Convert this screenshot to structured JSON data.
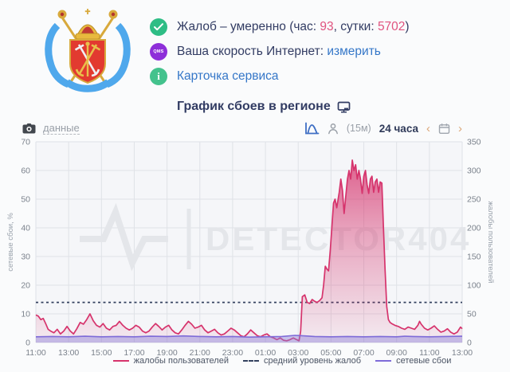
{
  "status": {
    "complaints_prefix": "Жалоб – умеренно (час: ",
    "complaints_hour": "93",
    "complaints_mid": ", сутки: ",
    "complaints_day": "5702",
    "complaints_suffix": ")",
    "qms_badge": "QMS",
    "speed_label": "Ваша скорость Интернет:",
    "speed_link": "измерить",
    "service_card_link": "Карточка сервиса"
  },
  "chart_section": {
    "title": "График сбоев в регионе",
    "data_toggle": "данные",
    "interval": "(15м)",
    "range": "24 часа",
    "chevron_left": "‹",
    "chevron_right": "›"
  },
  "colors": {
    "complaints_line": "#d6336c",
    "outages_line": "#7e6bd8",
    "average_line": "#33415e",
    "link_blue": "#3577c8",
    "value_pink": "#e0537f",
    "badge_green": "#2ebd85",
    "badge_purple": "#8e2fd9"
  },
  "chart_data": {
    "type": "area",
    "title": "График сбоев в регионе",
    "watermark": "DETECTOR404",
    "x_range": [
      0,
      26
    ],
    "x_tick_step": 2,
    "x_ticks": [
      "11:00",
      "13:00",
      "15:00",
      "17:00",
      "19:00",
      "21:00",
      "23:00",
      "01:00",
      "03:00",
      "05:00",
      "07:00",
      "09:00",
      "11:00",
      "13:00"
    ],
    "y_left": {
      "label": "сетевые сбои, %",
      "max": 70,
      "ticks": [
        0,
        10,
        20,
        30,
        40,
        50,
        60,
        70
      ]
    },
    "y_right": {
      "label": "жалобы пользователей",
      "max": 350,
      "ticks": [
        0,
        50,
        100,
        150,
        200,
        250,
        300,
        350
      ]
    },
    "average_line": {
      "name": "средний уровень жалоб",
      "axis": "right",
      "value": 70,
      "color": "#33415e"
    },
    "series": [
      {
        "name": "жалобы пользователей",
        "axis": "right",
        "color": "#d6336c",
        "points": [
          [
            0,
            48
          ],
          [
            0.15,
            46
          ],
          [
            0.3,
            40
          ],
          [
            0.45,
            42
          ],
          [
            0.6,
            33
          ],
          [
            0.75,
            23
          ],
          [
            0.9,
            20
          ],
          [
            1.1,
            17
          ],
          [
            1.3,
            23
          ],
          [
            1.5,
            15
          ],
          [
            1.7,
            20
          ],
          [
            1.9,
            28
          ],
          [
            2.1,
            20
          ],
          [
            2.3,
            15
          ],
          [
            2.5,
            24
          ],
          [
            2.7,
            35
          ],
          [
            2.9,
            32
          ],
          [
            3.1,
            40
          ],
          [
            3.3,
            50
          ],
          [
            3.5,
            38
          ],
          [
            3.7,
            30
          ],
          [
            3.9,
            27
          ],
          [
            4.1,
            33
          ],
          [
            4.3,
            25
          ],
          [
            4.5,
            22
          ],
          [
            4.7,
            28
          ],
          [
            4.9,
            30
          ],
          [
            5.1,
            37
          ],
          [
            5.3,
            30
          ],
          [
            5.5,
            25
          ],
          [
            5.7,
            22
          ],
          [
            5.9,
            25
          ],
          [
            6.1,
            30
          ],
          [
            6.3,
            27
          ],
          [
            6.5,
            20
          ],
          [
            6.7,
            17
          ],
          [
            6.9,
            20
          ],
          [
            7.1,
            27
          ],
          [
            7.3,
            33
          ],
          [
            7.5,
            28
          ],
          [
            7.7,
            22
          ],
          [
            7.9,
            27
          ],
          [
            8.1,
            30
          ],
          [
            8.3,
            22
          ],
          [
            8.5,
            17
          ],
          [
            8.7,
            15
          ],
          [
            8.9,
            22
          ],
          [
            9.1,
            30
          ],
          [
            9.3,
            37
          ],
          [
            9.5,
            32
          ],
          [
            9.7,
            25
          ],
          [
            9.9,
            27
          ],
          [
            10.1,
            30
          ],
          [
            10.3,
            22
          ],
          [
            10.5,
            17
          ],
          [
            10.7,
            20
          ],
          [
            10.9,
            23
          ],
          [
            11.1,
            17
          ],
          [
            11.3,
            13
          ],
          [
            11.5,
            15
          ],
          [
            11.7,
            20
          ],
          [
            11.9,
            25
          ],
          [
            12.1,
            22
          ],
          [
            12.3,
            17
          ],
          [
            12.5,
            12
          ],
          [
            12.7,
            10
          ],
          [
            12.9,
            15
          ],
          [
            13.1,
            22
          ],
          [
            13.3,
            17
          ],
          [
            13.5,
            12
          ],
          [
            13.7,
            10
          ],
          [
            13.9,
            13
          ],
          [
            14.1,
            15
          ],
          [
            14.3,
            10
          ],
          [
            14.5,
            8
          ],
          [
            14.7,
            5
          ],
          [
            14.9,
            8
          ],
          [
            15.1,
            4
          ],
          [
            15.3,
            3
          ],
          [
            15.5,
            5
          ],
          [
            15.7,
            8
          ],
          [
            15.9,
            5
          ],
          [
            16.05,
            3
          ],
          [
            16.15,
            20
          ],
          [
            16.25,
            80
          ],
          [
            16.4,
            83
          ],
          [
            16.55,
            70
          ],
          [
            16.7,
            68
          ],
          [
            16.85,
            75
          ],
          [
            17,
            72
          ],
          [
            17.15,
            70
          ],
          [
            17.3,
            73
          ],
          [
            17.45,
            78
          ],
          [
            17.55,
            100
          ],
          [
            17.65,
            133
          ],
          [
            17.75,
            128
          ],
          [
            17.85,
            125
          ],
          [
            17.95,
            160
          ],
          [
            18.05,
            200
          ],
          [
            18.15,
            243
          ],
          [
            18.25,
            250
          ],
          [
            18.35,
            235
          ],
          [
            18.5,
            262
          ],
          [
            18.6,
            285
          ],
          [
            18.7,
            265
          ],
          [
            18.8,
            225
          ],
          [
            18.9,
            255
          ],
          [
            19,
            285
          ],
          [
            19.1,
            300
          ],
          [
            19.2,
            285
          ],
          [
            19.3,
            318
          ],
          [
            19.4,
            300
          ],
          [
            19.5,
            310
          ],
          [
            19.6,
            285
          ],
          [
            19.7,
            300
          ],
          [
            19.8,
            285
          ],
          [
            19.9,
            260
          ],
          [
            20,
            290
          ],
          [
            20.1,
            300
          ],
          [
            20.2,
            275
          ],
          [
            20.3,
            260
          ],
          [
            20.4,
            285
          ],
          [
            20.5,
            290
          ],
          [
            20.6,
            262
          ],
          [
            20.7,
            280
          ],
          [
            20.8,
            285
          ],
          [
            20.9,
            262
          ],
          [
            21,
            280
          ],
          [
            21.1,
            278
          ],
          [
            21.2,
            200
          ],
          [
            21.3,
            125
          ],
          [
            21.4,
            63
          ],
          [
            21.5,
            40
          ],
          [
            21.6,
            35
          ],
          [
            21.7,
            33
          ],
          [
            21.9,
            30
          ],
          [
            22.1,
            28
          ],
          [
            22.3,
            25
          ],
          [
            22.5,
            23
          ],
          [
            22.7,
            27
          ],
          [
            22.9,
            25
          ],
          [
            23.1,
            23
          ],
          [
            23.3,
            30
          ],
          [
            23.4,
            37
          ],
          [
            23.5,
            32
          ],
          [
            23.7,
            25
          ],
          [
            23.9,
            22
          ],
          [
            24.1,
            25
          ],
          [
            24.3,
            29
          ],
          [
            24.5,
            23
          ],
          [
            24.7,
            18
          ],
          [
            24.9,
            20
          ],
          [
            25.1,
            24
          ],
          [
            25.3,
            18
          ],
          [
            25.5,
            15
          ],
          [
            25.7,
            18
          ],
          [
            25.9,
            27
          ],
          [
            26,
            24
          ]
        ]
      },
      {
        "name": "сетевые сбои",
        "axis": "left",
        "color": "#7e6bd8",
        "fill_color": "rgba(143,127,216,0.45)",
        "points": [
          [
            0,
            2
          ],
          [
            1,
            2.1
          ],
          [
            2,
            2
          ],
          [
            3,
            2.2
          ],
          [
            4,
            2
          ],
          [
            5,
            2.1
          ],
          [
            6,
            2
          ],
          [
            7,
            2.2
          ],
          [
            8,
            2.1
          ],
          [
            9,
            2.3
          ],
          [
            10,
            2.1
          ],
          [
            11,
            2
          ],
          [
            12,
            2.1
          ],
          [
            13,
            1.9
          ],
          [
            14,
            2
          ],
          [
            15,
            2.1
          ],
          [
            15.8,
            2.5
          ],
          [
            16.2,
            2.4
          ],
          [
            17,
            2.1
          ],
          [
            18,
            2
          ],
          [
            19,
            2.1
          ],
          [
            20,
            2
          ],
          [
            21,
            2.1
          ],
          [
            22,
            2
          ],
          [
            22.5,
            2.2
          ],
          [
            23,
            2.1
          ],
          [
            24,
            2
          ],
          [
            25,
            2.1
          ],
          [
            26,
            2.2
          ]
        ]
      }
    ],
    "legend_position": "bottom"
  }
}
